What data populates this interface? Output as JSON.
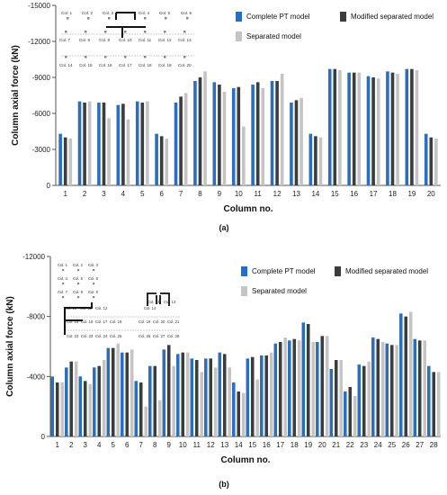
{
  "chart_data": [
    {
      "type": "bar",
      "panel_label": "(a)",
      "xlabel": "Column no.",
      "ylabel": "Column axial force (kN)",
      "ylim": [
        0,
        -15000
      ],
      "yticks": [
        0,
        -3000,
        -6000,
        -9000,
        -12000,
        -15000
      ],
      "ytick_labels": [
        "0",
        "-3000",
        "-6000",
        "-9000",
        "-12000",
        "-15000"
      ],
      "categories": [
        "1",
        "2",
        "3",
        "4",
        "5",
        "6",
        "7",
        "8",
        "9",
        "10",
        "11",
        "12",
        "13",
        "14",
        "15",
        "16",
        "17",
        "18",
        "19",
        "20"
      ],
      "colors": [
        "#2a6fbd",
        "#3c3c3c",
        "#c4c4c4"
      ],
      "legend_position": "top-right",
      "series": [
        {
          "name": "Complete PT model",
          "values": [
            -4300,
            -7000,
            -6900,
            -6700,
            -7000,
            -4300,
            -6900,
            -8700,
            -8600,
            -8100,
            -8400,
            -8700,
            -6900,
            -4300,
            -9700,
            -9400,
            -9100,
            -9500,
            -9700,
            -4300
          ]
        },
        {
          "name": "Modified separated model",
          "values": [
            -4000,
            -6900,
            -6900,
            -6800,
            -6900,
            -4100,
            -7400,
            -9000,
            -8400,
            -8200,
            -8600,
            -8700,
            -7100,
            -4100,
            -9700,
            -9400,
            -9000,
            -9400,
            -9700,
            -4000
          ]
        },
        {
          "name": "Separated model",
          "values": [
            -3900,
            -7000,
            -5600,
            -5500,
            -7000,
            -3900,
            -7700,
            -9500,
            -7800,
            -4900,
            -8100,
            -9300,
            -7300,
            -4000,
            -9600,
            -9400,
            -8900,
            -9300,
            -9600,
            -3900
          ]
        }
      ],
      "inset_labels": [
        "Col. 1",
        "Col. 2",
        "Col. 3",
        "Col. 4",
        "Col. 5",
        "Col. 6",
        "Col. 7",
        "Col. 8",
        "Col. 9",
        "Col. 10",
        "Col. 11",
        "Col. 12",
        "Col. 13",
        "Col. 14",
        "Col. 15",
        "Col. 16",
        "Col. 17",
        "Col. 18",
        "Col. 19",
        "Col. 20"
      ]
    },
    {
      "type": "bar",
      "panel_label": "(b)",
      "xlabel": "Column no.",
      "ylabel": "Column axial force (kN)",
      "ylim": [
        0,
        -12000
      ],
      "yticks": [
        0,
        -4000,
        -8000,
        -12000
      ],
      "ytick_labels": [
        "0",
        "-4000",
        "-8000",
        "-12000"
      ],
      "categories": [
        "1",
        "2",
        "3",
        "4",
        "5",
        "6",
        "7",
        "8",
        "9",
        "10",
        "11",
        "12",
        "13",
        "14",
        "15",
        "16",
        "17",
        "18",
        "19",
        "20",
        "21",
        "22",
        "23",
        "24",
        "25",
        "26",
        "27",
        "28"
      ],
      "colors": [
        "#2a6fbd",
        "#3c3c3c",
        "#c4c4c4"
      ],
      "legend_position": "top-right",
      "series": [
        {
          "name": "Complete PT model",
          "values": [
            -4000,
            -4600,
            -4000,
            -4600,
            -5900,
            -5600,
            -3700,
            -4700,
            -5800,
            -5500,
            -5200,
            -5200,
            -5600,
            -3600,
            -5200,
            -5400,
            -6200,
            -6400,
            -7600,
            -6300,
            -4500,
            -3000,
            -4800,
            -6600,
            -6200,
            -8200,
            -6500,
            -4700
          ]
        },
        {
          "name": "Modified separated model",
          "values": [
            -3600,
            -5000,
            -3700,
            -4700,
            -5900,
            -5600,
            -3600,
            -4700,
            -6100,
            -5600,
            -5100,
            -5200,
            -5500,
            -3000,
            -5300,
            -5400,
            -6300,
            -6500,
            -7500,
            -6700,
            -5100,
            -3300,
            -4700,
            -6500,
            -6100,
            -8000,
            -6400,
            -4300
          ]
        },
        {
          "name": "Separated model",
          "values": [
            -3600,
            -5000,
            -3500,
            -5100,
            -6200,
            -5800,
            -2000,
            -2400,
            -4700,
            -5600,
            -4300,
            -4600,
            -4600,
            -2900,
            -3800,
            -5600,
            -6600,
            -6400,
            -6300,
            -6700,
            -5100,
            -2700,
            -5000,
            -6300,
            -6100,
            -8300,
            -6400,
            -4300
          ]
        }
      ],
      "inset_labels": [
        "Col. 1",
        "Col. 2",
        "Col. 3",
        "Col. 4",
        "Col. 5",
        "Col. 6",
        "Col. 7",
        "Col. 8",
        "Col. 9",
        "Col. 10",
        "Col. 11",
        "Col. 12",
        "Col. 13",
        "Col. 14",
        "Col. 15",
        "Col. 16",
        "Col. 17",
        "Col. 18",
        "Col. 19",
        "Col. 20",
        "Col. 21",
        "Col. 22",
        "Col. 23",
        "Col. 24",
        "Col. 25",
        "Col. 26",
        "Col. 27",
        "Col. 28"
      ]
    }
  ]
}
